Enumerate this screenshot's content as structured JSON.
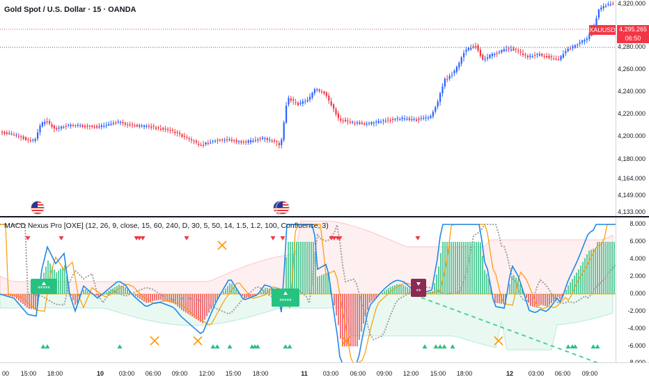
{
  "main": {
    "title": "Gold Spot / U.S. Dollar · 15 · OANDA",
    "symbol": "XAUUSD",
    "last_price": "4,295.265",
    "countdown": "06:50",
    "price_ticks": [
      "4,320.000",
      "4,280.000",
      "4,260.000",
      "4,240.000",
      "4,220.000",
      "4,200.000",
      "4,180.000",
      "4,164.000",
      "4,149.000",
      "4,133.000"
    ],
    "up_color": "#2962ff",
    "down_color": "#f23645",
    "event_icons": [
      "us-flag-icon",
      "us-flag-icon"
    ]
  },
  "indicator": {
    "title": "MACD Nexus Pro [OXE] (12, 26, 9, close, 15, 60, 240, D, 30, 5, 50, 14, 1.5, 1.2, 100, Confluence, 3)",
    "value_ticks": [
      "8.000",
      "6.000",
      "4.000",
      "2.000",
      "0.000",
      "-2.000",
      "-4.000",
      "-6.000",
      "-8.000"
    ],
    "badges": [
      {
        "text": "*****",
        "color": "#26c281"
      },
      {
        "text": "*****",
        "color": "#26c281"
      },
      {
        "text": "**",
        "color": "#8b2a53"
      }
    ],
    "markers": {
      "sell_marker": "down-triangle-icon",
      "buy_marker": "up-triangle-icon",
      "cross_marker": "x-cross-icon"
    }
  },
  "time_axis": {
    "labels": [
      "00",
      "15:00",
      "18:00",
      "10",
      "03:00",
      "06:00",
      "09:00",
      "12:00",
      "15:00",
      "18:00",
      "11",
      "03:00",
      "06:00",
      "09:00",
      "12:00",
      "15:00",
      "18:00",
      "12",
      "03:00",
      "06:00",
      "09:00"
    ]
  }
}
